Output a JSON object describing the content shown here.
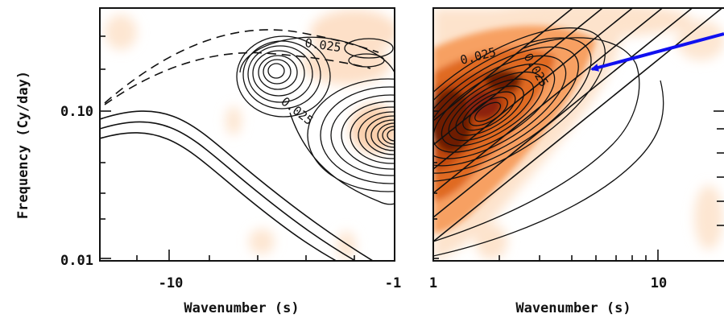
{
  "chart_data": [
    {
      "type": "contour",
      "panel": "left",
      "xlabel": "Wavenumber (s)",
      "ylabel": "Frequency (Cy/day)",
      "xticks": [
        "-10",
        "-1"
      ],
      "yticks": [
        "0.10",
        "0.01"
      ],
      "xscale": "log",
      "yscale": "log",
      "xlim": [
        -20,
        -1
      ],
      "ylim": [
        0.0095,
        0.5
      ],
      "contour_labels": [
        "0.025",
        "0.025"
      ],
      "shading": "orange (sparse, light)",
      "dispersion_curves": {
        "solid": 3,
        "dashed": 2
      }
    },
    {
      "type": "contour",
      "panel": "right",
      "xlabel": "Wavenumber (s)",
      "xticks": [
        "1",
        "10"
      ],
      "xscale": "log",
      "yscale": "log",
      "xlim": [
        1,
        20
      ],
      "ylim": [
        0.0095,
        0.5
      ],
      "contour_labels": [
        "0.025",
        "0.025"
      ],
      "shading": "dark red / orange (dense)",
      "dispersion_curves": {
        "solid": 6
      },
      "annotation": "blue arrow pointing to the spectral ridge"
    }
  ],
  "colors": {
    "arrow": "#1010f0",
    "shade_light": "#fde3cc",
    "shade_mid": "#f7a062",
    "shade_dark": "#c24a10",
    "shade_deep": "#6e1a05",
    "ink": "#111111"
  }
}
